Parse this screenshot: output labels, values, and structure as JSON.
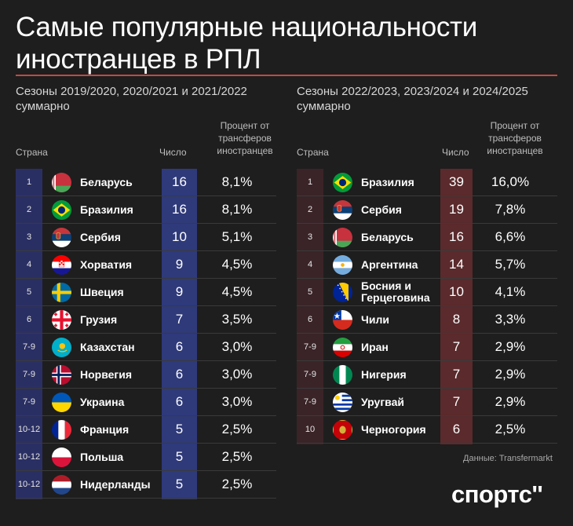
{
  "title": "Самые популярные национальности иностранцев в РПЛ",
  "source": "Данные: Transfermarkt",
  "logo": "спортс''",
  "colors": {
    "accent_line": "#c44a40",
    "left_band": "#2a2f63",
    "left_band_num": "#2f3a7a",
    "right_band": "#3a2428",
    "right_band_num": "#5a2a2c"
  },
  "headers": {
    "country": "Страна",
    "count": "Число",
    "percent": "Процент от трансферов иностранцев"
  },
  "chart_data": [
    {
      "type": "table",
      "title": "Сезоны 2019/2020, 2020/2021 и 2021/2022 суммарно",
      "columns": [
        "Страна",
        "Число",
        "Процент от трансферов иностранцев"
      ],
      "rows": [
        {
          "rank": "1",
          "country": "Беларусь",
          "flag": "belarus-flag-icon",
          "count": "16",
          "percent": "8,1%"
        },
        {
          "rank": "2",
          "country": "Бразилия",
          "flag": "brazil-flag-icon",
          "count": "16",
          "percent": "8,1%"
        },
        {
          "rank": "3",
          "country": "Сербия",
          "flag": "serbia-flag-icon",
          "count": "10",
          "percent": "5,1%"
        },
        {
          "rank": "4",
          "country": "Хорватия",
          "flag": "croatia-flag-icon",
          "count": "9",
          "percent": "4,5%"
        },
        {
          "rank": "5",
          "country": "Швеция",
          "flag": "sweden-flag-icon",
          "count": "9",
          "percent": "4,5%"
        },
        {
          "rank": "6",
          "country": "Грузия",
          "flag": "georgia-flag-icon",
          "count": "7",
          "percent": "3,5%"
        },
        {
          "rank": "7-9",
          "country": "Казахстан",
          "flag": "kazakhstan-flag-icon",
          "count": "6",
          "percent": "3,0%"
        },
        {
          "rank": "7-9",
          "country": "Норвегия",
          "flag": "norway-flag-icon",
          "count": "6",
          "percent": "3,0%"
        },
        {
          "rank": "7-9",
          "country": "Украина",
          "flag": "ukraine-flag-icon",
          "count": "6",
          "percent": "3,0%"
        },
        {
          "rank": "10-12",
          "country": "Франция",
          "flag": "france-flag-icon",
          "count": "5",
          "percent": "2,5%"
        },
        {
          "rank": "10-12",
          "country": "Польша",
          "flag": "poland-flag-icon",
          "count": "5",
          "percent": "2,5%"
        },
        {
          "rank": "10-12",
          "country": "Нидерланды",
          "flag": "netherlands-flag-icon",
          "count": "5",
          "percent": "2,5%"
        }
      ]
    },
    {
      "type": "table",
      "title": "Сезоны 2022/2023, 2023/2024 и 2024/2025 суммарно",
      "columns": [
        "Страна",
        "Число",
        "Процент от трансферов иностранцев"
      ],
      "rows": [
        {
          "rank": "1",
          "country": "Бразилия",
          "flag": "brazil-flag-icon",
          "count": "39",
          "percent": "16,0%"
        },
        {
          "rank": "2",
          "country": "Сербия",
          "flag": "serbia-flag-icon",
          "count": "19",
          "percent": "7,8%"
        },
        {
          "rank": "3",
          "country": "Беларусь",
          "flag": "belarus-flag-icon",
          "count": "16",
          "percent": "6,6%"
        },
        {
          "rank": "4",
          "country": "Аргентина",
          "flag": "argentina-flag-icon",
          "count": "14",
          "percent": "5,7%"
        },
        {
          "rank": "5",
          "country": "Босния и Герцеговина",
          "flag": "bosnia-flag-icon",
          "count": "10",
          "percent": "4,1%"
        },
        {
          "rank": "6",
          "country": "Чили",
          "flag": "chile-flag-icon",
          "count": "8",
          "percent": "3,3%"
        },
        {
          "rank": "7-9",
          "country": "Иран",
          "flag": "iran-flag-icon",
          "count": "7",
          "percent": "2,9%"
        },
        {
          "rank": "7-9",
          "country": "Нигерия",
          "flag": "nigeria-flag-icon",
          "count": "7",
          "percent": "2,9%"
        },
        {
          "rank": "7-9",
          "country": "Уругвай",
          "flag": "uruguay-flag-icon",
          "count": "7",
          "percent": "2,9%"
        },
        {
          "rank": "10",
          "country": "Черногория",
          "flag": "montenegro-flag-icon",
          "count": "6",
          "percent": "2,5%"
        }
      ]
    }
  ]
}
